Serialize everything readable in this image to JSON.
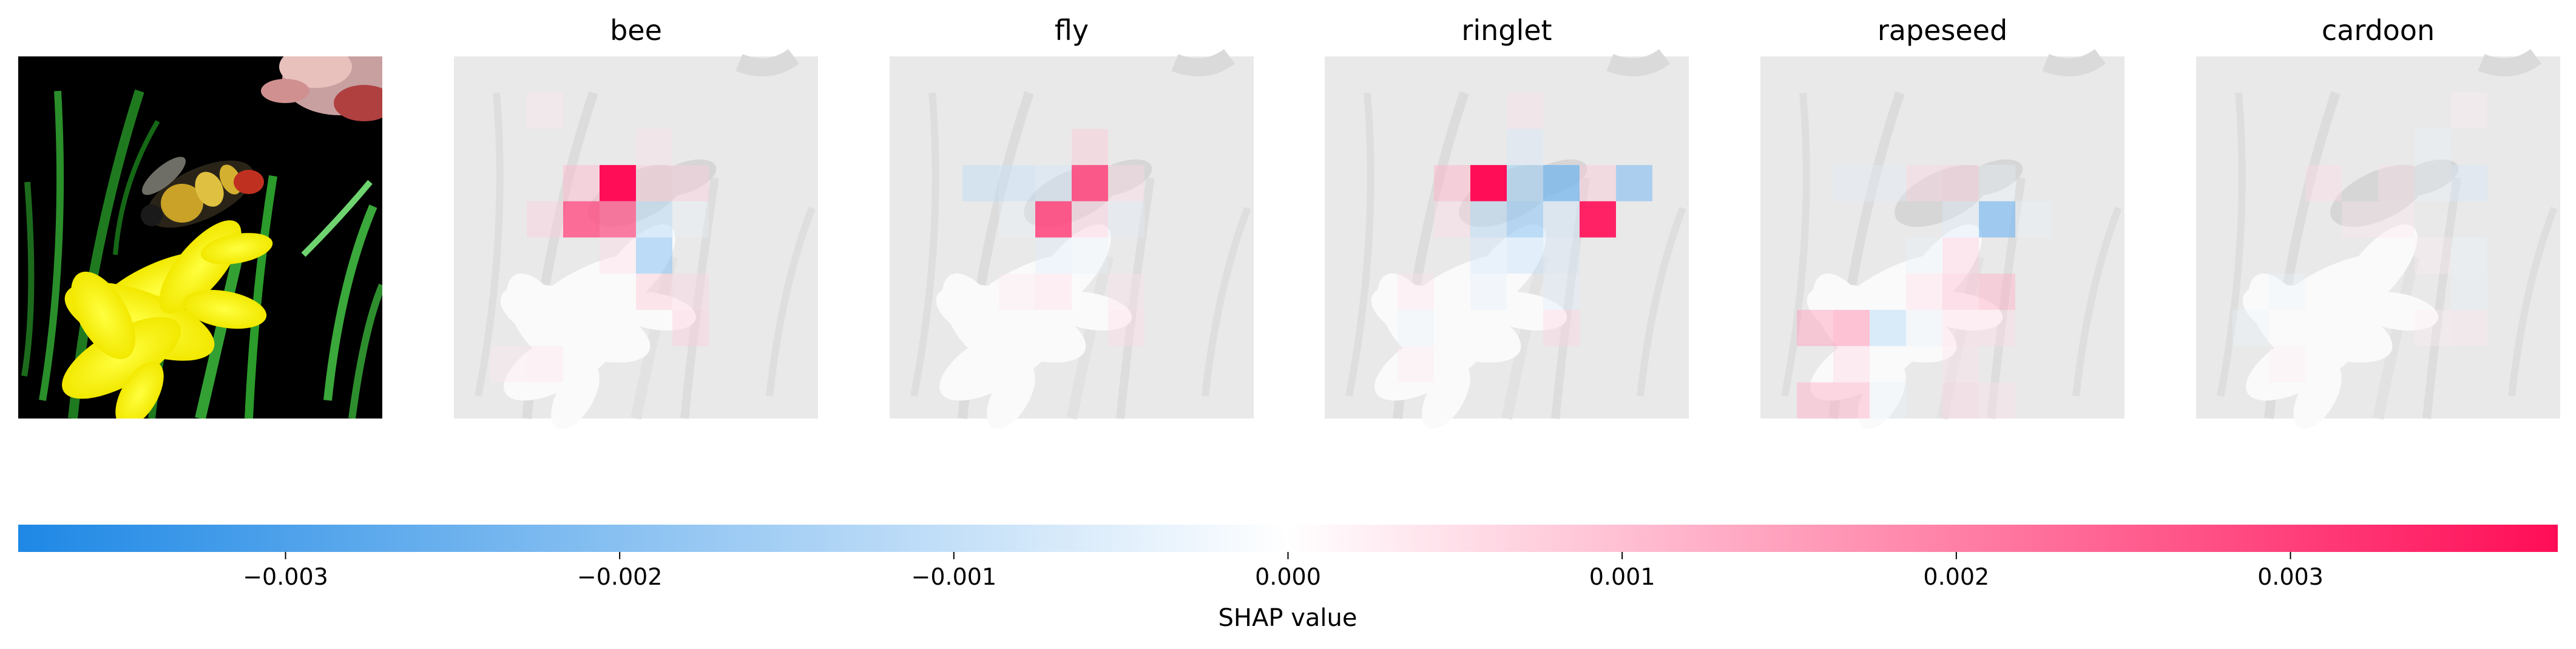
{
  "chart_data": {
    "type": "heatmap",
    "subtype": "shap-image-explanation",
    "panels": [
      {
        "title": "",
        "kind": "original-image",
        "image": "bee-on-yellow-flower"
      },
      {
        "title": "bee",
        "cells": [
          {
            "col": 3,
            "row": 3,
            "value": 0.0011
          },
          {
            "col": 4,
            "row": 3,
            "value": 0.0038
          },
          {
            "col": 5,
            "row": 3,
            "value": 0.0009
          },
          {
            "col": 6,
            "row": 3,
            "value": 0.0008
          },
          {
            "col": 2,
            "row": 4,
            "value": 0.0008
          },
          {
            "col": 3,
            "row": 4,
            "value": 0.0028
          },
          {
            "col": 4,
            "row": 4,
            "value": 0.0026
          },
          {
            "col": 5,
            "row": 4,
            "value": -0.0012
          },
          {
            "col": 6,
            "row": 4,
            "value": -0.0004
          },
          {
            "col": 5,
            "row": 5,
            "value": -0.0018
          },
          {
            "col": 4,
            "row": 5,
            "value": 0.0006
          },
          {
            "col": 5,
            "row": 6,
            "value": 0.0009
          },
          {
            "col": 6,
            "row": 6,
            "value": 0.0007
          },
          {
            "col": 2,
            "row": 1,
            "value": 0.0004
          },
          {
            "col": 5,
            "row": 2,
            "value": 0.0005
          },
          {
            "col": 6,
            "row": 7,
            "value": 0.0008
          },
          {
            "col": 2,
            "row": 8,
            "value": 0.0005
          },
          {
            "col": 1,
            "row": 8,
            "value": 0.0004
          }
        ]
      },
      {
        "title": "fly",
        "cells": [
          {
            "col": 5,
            "row": 2,
            "value": 0.0009
          },
          {
            "col": 5,
            "row": 3,
            "value": 0.003
          },
          {
            "col": 2,
            "row": 3,
            "value": -0.0011
          },
          {
            "col": 3,
            "row": 3,
            "value": -0.001
          },
          {
            "col": 4,
            "row": 3,
            "value": -0.0008
          },
          {
            "col": 6,
            "row": 3,
            "value": 0.0006
          },
          {
            "col": 4,
            "row": 4,
            "value": 0.003
          },
          {
            "col": 5,
            "row": 4,
            "value": 0.0008
          },
          {
            "col": 6,
            "row": 4,
            "value": -0.0005
          },
          {
            "col": 3,
            "row": 4,
            "value": -0.0004
          },
          {
            "col": 4,
            "row": 5,
            "value": -0.0006
          },
          {
            "col": 5,
            "row": 5,
            "value": -0.0004
          },
          {
            "col": 4,
            "row": 6,
            "value": 0.0006
          },
          {
            "col": 6,
            "row": 6,
            "value": 0.0005
          },
          {
            "col": 3,
            "row": 6,
            "value": 0.0004
          },
          {
            "col": 6,
            "row": 7,
            "value": 0.0006
          }
        ]
      },
      {
        "title": "ringlet",
        "cells": [
          {
            "col": 5,
            "row": 2,
            "value": -0.0007
          },
          {
            "col": 3,
            "row": 3,
            "value": 0.0012
          },
          {
            "col": 4,
            "row": 3,
            "value": 0.0038
          },
          {
            "col": 5,
            "row": 3,
            "value": -0.0016
          },
          {
            "col": 6,
            "row": 3,
            "value": -0.0024
          },
          {
            "col": 7,
            "row": 3,
            "value": 0.0009
          },
          {
            "col": 8,
            "row": 3,
            "value": -0.002
          },
          {
            "col": 4,
            "row": 4,
            "value": -0.0012
          },
          {
            "col": 5,
            "row": 4,
            "value": -0.0018
          },
          {
            "col": 6,
            "row": 4,
            "value": -0.0009
          },
          {
            "col": 7,
            "row": 4,
            "value": 0.0036
          },
          {
            "col": 3,
            "row": 4,
            "value": 0.0006
          },
          {
            "col": 4,
            "row": 5,
            "value": -0.0008
          },
          {
            "col": 5,
            "row": 5,
            "value": -0.001
          },
          {
            "col": 6,
            "row": 5,
            "value": -0.0007
          },
          {
            "col": 4,
            "row": 6,
            "value": -0.0005
          },
          {
            "col": 6,
            "row": 6,
            "value": -0.0006
          },
          {
            "col": 2,
            "row": 6,
            "value": 0.0005
          },
          {
            "col": 5,
            "row": 1,
            "value": 0.0005
          },
          {
            "col": 2,
            "row": 7,
            "value": -0.0004
          },
          {
            "col": 6,
            "row": 7,
            "value": 0.0007
          },
          {
            "col": 2,
            "row": 8,
            "value": 0.0004
          }
        ]
      },
      {
        "title": "rapeseed",
        "cells": [
          {
            "col": 2,
            "row": 3,
            "value": -0.0005
          },
          {
            "col": 3,
            "row": 3,
            "value": -0.0005
          },
          {
            "col": 4,
            "row": 3,
            "value": 0.0007
          },
          {
            "col": 5,
            "row": 3,
            "value": 0.0008
          },
          {
            "col": 6,
            "row": 3,
            "value": -0.0003
          },
          {
            "col": 5,
            "row": 4,
            "value": -0.0006
          },
          {
            "col": 6,
            "row": 4,
            "value": -0.0022
          },
          {
            "col": 7,
            "row": 4,
            "value": -0.0004
          },
          {
            "col": 4,
            "row": 5,
            "value": -0.0004
          },
          {
            "col": 5,
            "row": 5,
            "value": 0.0008
          },
          {
            "col": 5,
            "row": 6,
            "value": 0.001
          },
          {
            "col": 6,
            "row": 6,
            "value": 0.0012
          },
          {
            "col": 4,
            "row": 6,
            "value": 0.0006
          },
          {
            "col": 1,
            "row": 7,
            "value": 0.0014
          },
          {
            "col": 2,
            "row": 7,
            "value": 0.0016
          },
          {
            "col": 3,
            "row": 7,
            "value": -0.0012
          },
          {
            "col": 4,
            "row": 7,
            "value": -0.0004
          },
          {
            "col": 5,
            "row": 7,
            "value": 0.0006
          },
          {
            "col": 6,
            "row": 7,
            "value": 0.0006
          },
          {
            "col": 2,
            "row": 8,
            "value": 0.0007
          },
          {
            "col": 1,
            "row": 9,
            "value": 0.0012
          },
          {
            "col": 2,
            "row": 9,
            "value": 0.0012
          },
          {
            "col": 3,
            "row": 9,
            "value": -0.0004
          },
          {
            "col": 5,
            "row": 9,
            "value": 0.0007
          },
          {
            "col": 6,
            "row": 9,
            "value": 0.0005
          },
          {
            "col": 5,
            "row": 8,
            "value": 0.0005
          }
        ]
      },
      {
        "title": "cardoon",
        "cells": [
          {
            "col": 3,
            "row": 3,
            "value": 0.0006
          },
          {
            "col": 5,
            "row": 3,
            "value": 0.0005
          },
          {
            "col": 6,
            "row": 3,
            "value": -0.0004
          },
          {
            "col": 7,
            "row": 3,
            "value": -0.0007
          },
          {
            "col": 4,
            "row": 4,
            "value": 0.0004
          },
          {
            "col": 5,
            "row": 4,
            "value": 0.0004
          },
          {
            "col": 6,
            "row": 2,
            "value": -0.0004
          },
          {
            "col": 7,
            "row": 1,
            "value": 0.0003
          },
          {
            "col": 7,
            "row": 5,
            "value": -0.0003
          },
          {
            "col": 6,
            "row": 5,
            "value": 0.0003
          },
          {
            "col": 2,
            "row": 6,
            "value": -0.0003
          },
          {
            "col": 1,
            "row": 7,
            "value": -0.0003
          },
          {
            "col": 7,
            "row": 7,
            "value": 0.0004
          },
          {
            "col": 6,
            "row": 7,
            "value": 0.0003
          },
          {
            "col": 7,
            "row": 6,
            "value": -0.0004
          },
          {
            "col": 2,
            "row": 8,
            "value": 0.0003
          }
        ]
      }
    ],
    "grid": {
      "cols": 10,
      "rows": 10
    },
    "colorbar": {
      "label": "SHAP value",
      "vmin": -0.0038,
      "vmax": 0.0038,
      "ticks": [
        -0.003,
        -0.002,
        -0.001,
        0.0,
        0.001,
        0.002,
        0.003
      ],
      "tick_labels": [
        "−0.003",
        "−0.002",
        "−0.001",
        "0.000",
        "0.001",
        "0.002",
        "0.003"
      ],
      "neg_color": "#1e88e5",
      "mid_color": "#ffffff",
      "pos_color": "#ff0d57"
    }
  }
}
